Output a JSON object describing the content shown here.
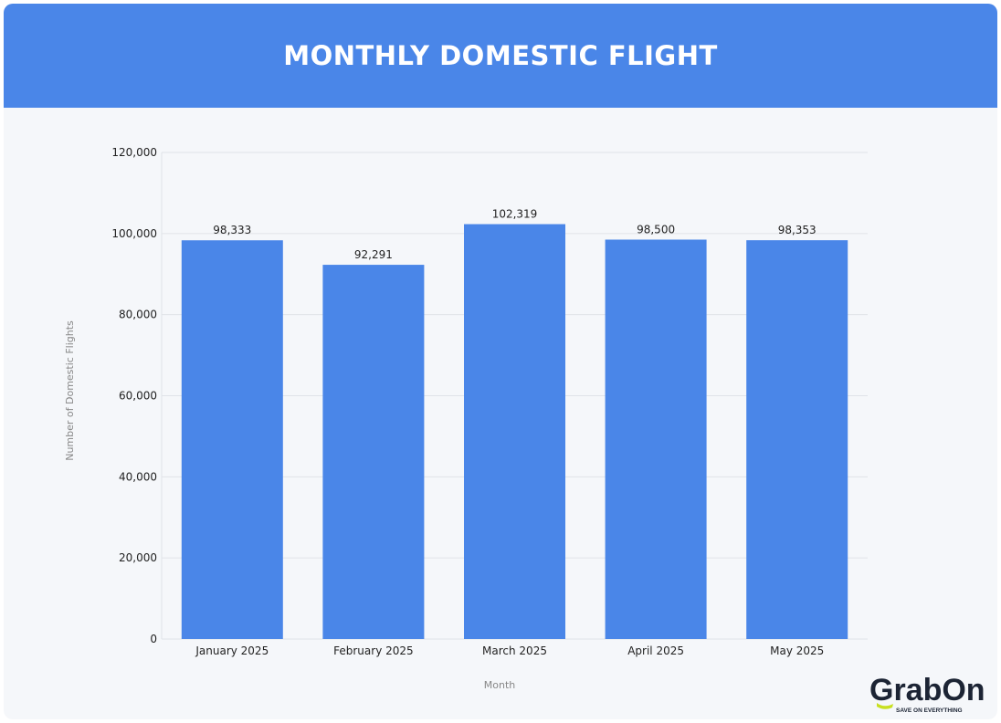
{
  "header": {
    "title": "MONTHLY DOMESTIC FLIGHT"
  },
  "logo": {
    "name": "GrabOn",
    "tagline": "SAVE ON EVERYTHING"
  },
  "chart_data": {
    "type": "bar",
    "title": "MONTHLY DOMESTIC FLIGHT",
    "xlabel": "Month",
    "ylabel": "Number of Domestic Flights",
    "categories": [
      "January 2025",
      "February 2025",
      "March 2025",
      "April 2025",
      "May 2025"
    ],
    "values": [
      98333,
      92291,
      102319,
      98500,
      98353
    ],
    "data_labels": [
      "98,333",
      "92,291",
      "102,319",
      "98,500",
      "98,353"
    ],
    "ylim": [
      0,
      120000
    ],
    "yticks": [
      0,
      20000,
      40000,
      60000,
      80000,
      100000,
      120000
    ],
    "ytick_labels": [
      "0",
      "20,000",
      "40,000",
      "60,000",
      "80,000",
      "100,000",
      "120,000"
    ],
    "grid": true,
    "bar_color": "#4a86e8"
  }
}
